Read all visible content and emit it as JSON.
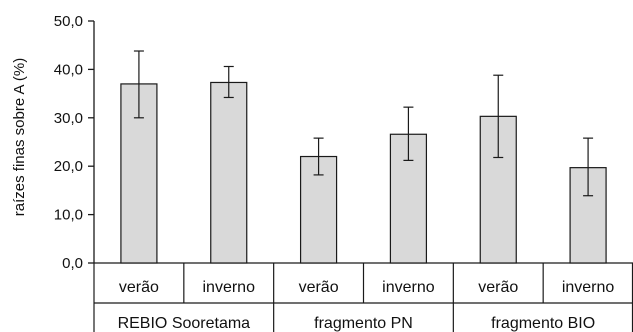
{
  "chart_data": {
    "type": "bar",
    "title": "",
    "xlabel": "",
    "ylabel": "raízes finas sobre A (%)",
    "ylim": [
      0,
      50
    ],
    "yticks": [
      "0,0",
      "10,0",
      "20,0",
      "30,0",
      "40,0",
      "50,0"
    ],
    "ytick_values": [
      0,
      10,
      20,
      30,
      40,
      50
    ],
    "grid": false,
    "legend": "none",
    "bar_color": "#d9d9d9",
    "bar_edge_color": "#1a1a1a",
    "groups": [
      {
        "label": "REBIO Sooretama",
        "categories": [
          {
            "label": "verão",
            "value": 37.0,
            "error_low": 30.0,
            "error_high": 43.8
          },
          {
            "label": "inverno",
            "value": 37.3,
            "error_low": 34.2,
            "error_high": 40.6
          }
        ]
      },
      {
        "label": "fragmento PN",
        "categories": [
          {
            "label": "verão",
            "value": 22.0,
            "error_low": 18.2,
            "error_high": 25.8
          },
          {
            "label": "inverno",
            "value": 26.6,
            "error_low": 21.2,
            "error_high": 32.2
          }
        ]
      },
      {
        "label": "fragmento BIO",
        "categories": [
          {
            "label": "verão",
            "value": 30.3,
            "error_low": 21.8,
            "error_high": 38.8
          },
          {
            "label": "inverno",
            "value": 19.7,
            "error_low": 13.9,
            "error_high": 25.8
          }
        ]
      }
    ]
  }
}
